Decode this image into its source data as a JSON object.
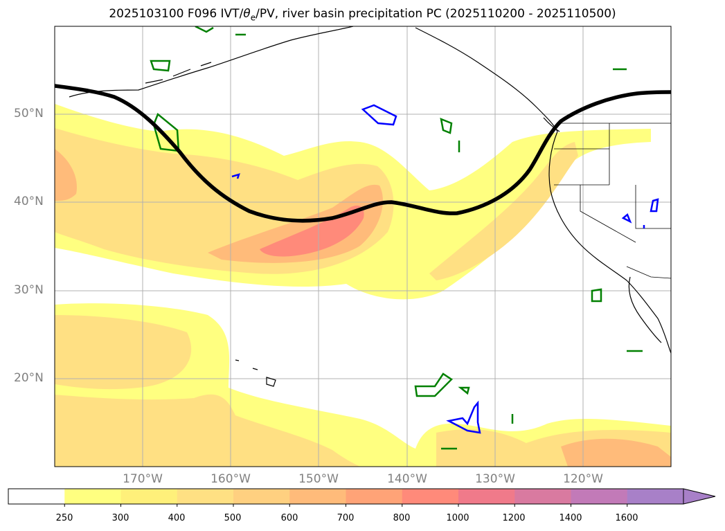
{
  "title": {
    "prefix": "2025103100 F096 IVT/",
    "theta": "θ",
    "sub": "e",
    "suffix": "/PV, river basin precipitation PC (2025110200 - 2025110500)"
  },
  "lat_labels": [
    "50°N",
    "40°N",
    "30°N",
    "20°N"
  ],
  "lon_labels": [
    "170°W",
    "160°W",
    "150°W",
    "140°W",
    "130°W",
    "120°W"
  ],
  "colorbar": {
    "levels": [
      "250",
      "300",
      "400",
      "500",
      "600",
      "700",
      "800",
      "1000",
      "1200",
      "1400",
      "1600"
    ],
    "colors": [
      "#ffffff",
      "#ffff80",
      "#fff07a",
      "#ffe083",
      "#ffd080",
      "#ffbb7a",
      "#ffa377",
      "#ff8a7a",
      "#f07a8a",
      "#d97aa0",
      "#c27ab8",
      "#a880c8"
    ]
  },
  "contour_colors": {
    "ivt_low": "#ffff80",
    "ivt_mid": "#ffe083",
    "ivt_high": "#ffbb7a",
    "ivt_peak": "#ff8a7a",
    "pv_line": "#000000",
    "theta_green": "#008000",
    "theta_blue": "#0000ff"
  }
}
